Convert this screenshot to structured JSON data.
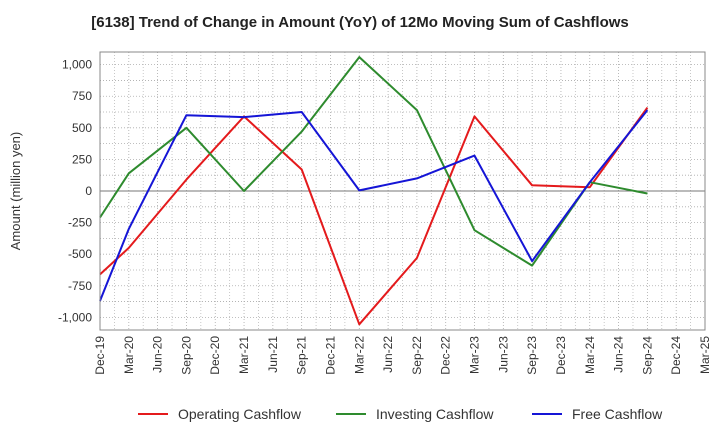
{
  "chart_data": {
    "type": "line",
    "title": "[6138]  Trend of Change in Amount (YoY) of 12Mo Moving Sum of Cashflows",
    "xlabel": "",
    "ylabel": "Amount (million yen)",
    "ylim": [
      -1100,
      1100
    ],
    "yticks": [
      -1000,
      -750,
      -500,
      -250,
      0,
      250,
      500,
      750,
      1000
    ],
    "ytick_labels": [
      "-1,000",
      "-750",
      "-500",
      "-250",
      "0",
      "250",
      "500",
      "750",
      "1,000"
    ],
    "categories": [
      "Dec-19",
      "Mar-20",
      "Jun-20",
      "Sep-20",
      "Dec-20",
      "Mar-21",
      "Jun-21",
      "Sep-21",
      "Dec-21",
      "Mar-22",
      "Jun-22",
      "Sep-22",
      "Dec-22",
      "Mar-23",
      "Jun-23",
      "Sep-23",
      "Dec-23",
      "Mar-24",
      "Jun-24",
      "Sep-24",
      "Dec-24",
      "Mar-25"
    ],
    "grid": true,
    "legend_position": "bottom",
    "series": [
      {
        "name": "Operating Cashflow",
        "color": "#e41a1c",
        "values": [
          -660,
          -450,
          null,
          90,
          null,
          590,
          null,
          170,
          null,
          -1055,
          null,
          -530,
          null,
          590,
          null,
          45,
          null,
          30,
          null,
          660,
          null,
          null
        ]
      },
      {
        "name": "Investing Cashflow",
        "color": "#2e8b2e",
        "values": [
          -210,
          140,
          null,
          500,
          null,
          0,
          null,
          470,
          null,
          1060,
          null,
          640,
          null,
          -310,
          null,
          -590,
          null,
          70,
          null,
          -20,
          null,
          null
        ]
      },
      {
        "name": "Free Cashflow",
        "color": "#1515d6",
        "values": [
          -870,
          -300,
          null,
          600,
          null,
          585,
          null,
          625,
          null,
          5,
          null,
          100,
          null,
          280,
          null,
          -555,
          null,
          70,
          null,
          640,
          null,
          null
        ]
      }
    ]
  }
}
